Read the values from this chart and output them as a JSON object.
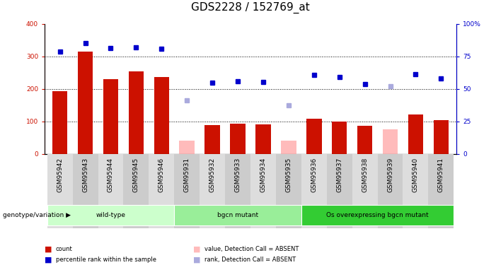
{
  "title": "GDS2228 / 152769_at",
  "samples": [
    "GSM95942",
    "GSM95943",
    "GSM95944",
    "GSM95945",
    "GSM95946",
    "GSM95931",
    "GSM95932",
    "GSM95933",
    "GSM95934",
    "GSM95935",
    "GSM95936",
    "GSM95937",
    "GSM95938",
    "GSM95939",
    "GSM95940",
    "GSM95941"
  ],
  "bar_values": [
    193,
    315,
    230,
    253,
    236,
    40,
    88,
    93,
    90,
    40,
    108,
    100,
    85,
    75,
    120,
    104
  ],
  "bar_absent": [
    false,
    false,
    false,
    false,
    false,
    true,
    false,
    false,
    false,
    true,
    false,
    false,
    false,
    true,
    false,
    false
  ],
  "rank_values": [
    315,
    340,
    325,
    328,
    324,
    165,
    218,
    224,
    221,
    149,
    243,
    236,
    214,
    208,
    244,
    232
  ],
  "rank_absent": [
    false,
    false,
    false,
    false,
    false,
    true,
    false,
    false,
    false,
    true,
    false,
    false,
    false,
    true,
    false,
    false
  ],
  "groups": [
    {
      "label": "wild-type",
      "start": 0,
      "end": 5,
      "color": "#ccffcc"
    },
    {
      "label": "bgcn mutant",
      "start": 5,
      "end": 10,
      "color": "#99ee99"
    },
    {
      "label": "Os overexpressing bgcn mutant",
      "start": 10,
      "end": 16,
      "color": "#33cc33"
    }
  ],
  "genotype_label": "genotype/variation",
  "ylim_left": [
    0,
    400
  ],
  "ylim_right": [
    0,
    100
  ],
  "yticks_left": [
    0,
    100,
    200,
    300,
    400
  ],
  "yticks_right": [
    0,
    25,
    50,
    75,
    100
  ],
  "ytick_labels_right": [
    "0",
    "25",
    "50",
    "75",
    "100%"
  ],
  "bar_color_present": "#cc1100",
  "bar_color_absent": "#ffbbbb",
  "rank_color_present": "#0000cc",
  "rank_color_absent": "#aaaadd",
  "title_fontsize": 11,
  "tick_fontsize": 6.5,
  "legend_items": [
    {
      "color": "#cc1100",
      "label": "count"
    },
    {
      "color": "#0000cc",
      "label": "percentile rank within the sample"
    },
    {
      "color": "#ffbbbb",
      "label": "value, Detection Call = ABSENT"
    },
    {
      "color": "#aaaadd",
      "label": "rank, Detection Call = ABSENT"
    }
  ],
  "grid_yticks": [
    100,
    200,
    300
  ],
  "background_color": "#ffffff"
}
